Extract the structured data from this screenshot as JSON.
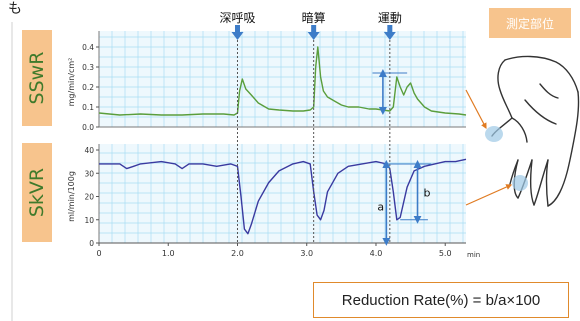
{
  "header_fragment": "も",
  "events": [
    {
      "label": "深呼吸",
      "x": 2.0
    },
    {
      "label": "暗算",
      "x": 3.1
    },
    {
      "label": "運動",
      "x": 4.2
    }
  ],
  "site_label": "測定部位",
  "formula": "Reduction  Rate(%) = b/a×100",
  "marker_a": "a",
  "marker_b": "b",
  "colors": {
    "sswr_line": "#5a9e3c",
    "skvr_line": "#3a3aa0",
    "grid": "#a9ddf2",
    "panel_bg": "#eef8fd",
    "tag_bg": "#f7c48d",
    "tag_text": "#3f7a2b",
    "arrow": "#3d7cc8",
    "pointer": "#e07b22"
  },
  "chart_data": [
    {
      "type": "line",
      "panel_label": "SSwR",
      "ylabel": "mg/min/cm²",
      "ylim": [
        0,
        0.45
      ],
      "yticks": [
        0.0,
        0.1,
        0.2,
        0.3,
        0.4
      ],
      "xlim": [
        0,
        5.3
      ],
      "series": [
        {
          "x": [
            0,
            0.3,
            0.6,
            0.9,
            1.2,
            1.5,
            1.8,
            1.95,
            2.0,
            2.03,
            2.07,
            2.12,
            2.2,
            2.3,
            2.45,
            2.6,
            2.8,
            2.95,
            3.05,
            3.1,
            3.13,
            3.16,
            3.2,
            3.24,
            3.3,
            3.4,
            3.5,
            3.6,
            3.75,
            3.9,
            4.0,
            4.1,
            4.2,
            4.25,
            4.3,
            4.35,
            4.4,
            4.45,
            4.5,
            4.55,
            4.6,
            4.7,
            4.8,
            4.9,
            5.0,
            5.2,
            5.3
          ],
          "y": [
            0.07,
            0.06,
            0.065,
            0.06,
            0.06,
            0.065,
            0.065,
            0.06,
            0.07,
            0.18,
            0.24,
            0.19,
            0.16,
            0.12,
            0.09,
            0.085,
            0.08,
            0.08,
            0.085,
            0.1,
            0.3,
            0.4,
            0.25,
            0.18,
            0.15,
            0.13,
            0.11,
            0.1,
            0.1,
            0.09,
            0.09,
            0.085,
            0.08,
            0.1,
            0.25,
            0.2,
            0.16,
            0.2,
            0.22,
            0.17,
            0.14,
            0.1,
            0.08,
            0.075,
            0.07,
            0.065,
            0.06
          ]
        }
      ]
    },
    {
      "type": "line",
      "panel_label": "SkVR",
      "ylabel": "ml/min/100g",
      "ylim": [
        0,
        40
      ],
      "yticks": [
        0,
        10,
        20,
        30,
        40
      ],
      "xlim": [
        0,
        5.3
      ],
      "xlabel": "min",
      "xticks": [
        0,
        1.0,
        2.0,
        3.0,
        4.0,
        5.0
      ],
      "series": [
        {
          "x": [
            0,
            0.3,
            0.4,
            0.5,
            0.6,
            0.9,
            1.1,
            1.2,
            1.3,
            1.5,
            1.7,
            1.9,
            2.0,
            2.05,
            2.1,
            2.15,
            2.2,
            2.3,
            2.45,
            2.6,
            2.8,
            2.95,
            3.05,
            3.1,
            3.15,
            3.2,
            3.25,
            3.3,
            3.45,
            3.6,
            3.8,
            4.0,
            4.15,
            4.2,
            4.25,
            4.3,
            4.35,
            4.45,
            4.55,
            4.7,
            4.85,
            5.0,
            5.15,
            5.3
          ],
          "y": [
            34,
            34,
            32,
            33,
            34,
            35,
            34,
            32,
            34,
            34,
            33,
            34,
            33,
            20,
            6,
            4,
            8,
            18,
            26,
            31,
            34,
            35,
            34,
            22,
            12,
            10,
            14,
            22,
            30,
            33,
            34,
            35,
            34,
            32,
            22,
            10,
            11,
            24,
            31,
            33,
            34,
            35,
            35,
            36
          ]
        }
      ]
    }
  ]
}
